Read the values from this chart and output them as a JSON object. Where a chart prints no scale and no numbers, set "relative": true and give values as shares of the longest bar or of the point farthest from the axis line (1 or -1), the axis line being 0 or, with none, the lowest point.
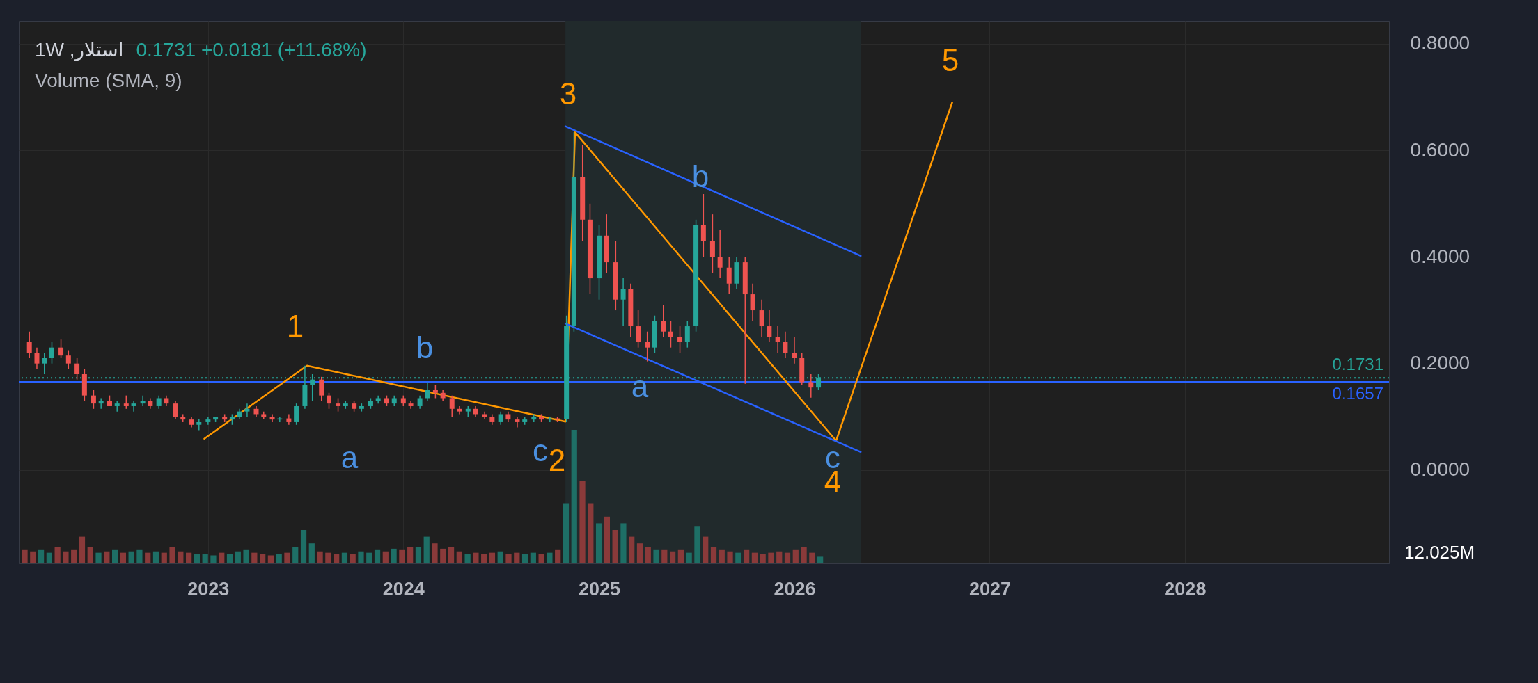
{
  "chart_data": [
    {
      "type": "candlestick",
      "title": "استلار, 1W",
      "subtitle": "Volume (SMA, 9)",
      "annotations": [
        "0.1731 +0.0181 (+11.68%)",
        "a",
        "b",
        "c",
        "a",
        "b",
        "c",
        "1",
        "2",
        "3",
        "4",
        "5"
      ],
      "x": [
        "2022-02-01",
        "2022-02-15",
        "2022-03-01",
        "2022-03-15",
        "2022-04-01",
        "2022-04-15",
        "2022-05-01",
        "2022-05-15",
        "2022-06-01",
        "2022-06-15",
        "2022-07-01",
        "2022-07-15",
        "2022-08-01",
        "2022-08-15",
        "2022-09-01",
        "2022-09-15",
        "2022-10-01",
        "2022-10-15",
        "2022-11-01",
        "2022-11-15",
        "2022-12-01",
        "2022-12-15",
        "2023-01-01",
        "2023-01-15",
        "2023-02-01",
        "2023-02-15",
        "2023-03-01",
        "2023-03-15",
        "2023-04-01",
        "2023-04-15",
        "2023-05-01",
        "2023-05-15",
        "2023-06-01",
        "2023-06-15",
        "2023-07-01",
        "2023-07-15",
        "2023-08-01",
        "2023-08-15",
        "2023-09-01",
        "2023-09-15",
        "2023-10-01",
        "2023-10-15",
        "2023-11-01",
        "2023-11-15",
        "2023-12-01",
        "2023-12-15",
        "2024-01-01",
        "2024-01-15",
        "2024-02-01",
        "2024-02-15",
        "2024-03-01",
        "2024-03-15",
        "2024-04-01",
        "2024-04-15",
        "2024-05-01",
        "2024-05-15",
        "2024-06-01",
        "2024-06-15",
        "2024-07-01",
        "2024-07-15",
        "2024-08-01",
        "2024-08-15",
        "2024-09-01",
        "2024-09-15",
        "2024-10-01",
        "2024-10-15",
        "2024-11-01",
        "2024-11-15",
        "2024-12-01",
        "2024-12-15",
        "2025-01-01",
        "2025-01-15",
        "2025-02-01",
        "2025-02-15",
        "2025-03-01",
        "2025-03-15",
        "2025-04-01",
        "2025-04-15",
        "2025-05-01",
        "2025-05-15",
        "2025-06-01",
        "2025-06-15",
        "2025-07-01",
        "2025-07-15",
        "2025-08-01",
        "2025-08-15",
        "2025-09-01",
        "2025-09-15",
        "2025-10-01",
        "2025-10-15",
        "2025-11-01",
        "2025-11-15",
        "2025-12-01",
        "2025-12-15",
        "2026-01-01",
        "2026-01-15",
        "2026-02-01",
        "2026-02-15"
      ],
      "ohlc": [
        [
          0.24,
          0.26,
          0.21,
          0.22
        ],
        [
          0.22,
          0.23,
          0.19,
          0.2
        ],
        [
          0.2,
          0.22,
          0.18,
          0.21
        ],
        [
          0.21,
          0.24,
          0.2,
          0.23
        ],
        [
          0.23,
          0.245,
          0.21,
          0.215
        ],
        [
          0.215,
          0.225,
          0.19,
          0.2
        ],
        [
          0.2,
          0.21,
          0.17,
          0.18
        ],
        [
          0.18,
          0.19,
          0.13,
          0.14
        ],
        [
          0.14,
          0.15,
          0.115,
          0.125
        ],
        [
          0.125,
          0.135,
          0.115,
          0.13
        ],
        [
          0.13,
          0.14,
          0.12,
          0.12
        ],
        [
          0.12,
          0.13,
          0.11,
          0.125
        ],
        [
          0.125,
          0.14,
          0.115,
          0.12
        ],
        [
          0.12,
          0.13,
          0.11,
          0.125
        ],
        [
          0.125,
          0.14,
          0.12,
          0.13
        ],
        [
          0.13,
          0.135,
          0.115,
          0.12
        ],
        [
          0.12,
          0.14,
          0.115,
          0.135
        ],
        [
          0.135,
          0.14,
          0.12,
          0.125
        ],
        [
          0.125,
          0.13,
          0.095,
          0.1
        ],
        [
          0.1,
          0.105,
          0.09,
          0.095
        ],
        [
          0.095,
          0.1,
          0.08,
          0.085
        ],
        [
          0.085,
          0.095,
          0.075,
          0.09
        ],
        [
          0.09,
          0.1,
          0.085,
          0.095
        ],
        [
          0.095,
          0.1,
          0.09,
          0.1
        ],
        [
          0.1,
          0.105,
          0.09,
          0.095
        ],
        [
          0.095,
          0.105,
          0.085,
          0.1
        ],
        [
          0.1,
          0.115,
          0.095,
          0.11
        ],
        [
          0.11,
          0.125,
          0.1,
          0.115
        ],
        [
          0.115,
          0.12,
          0.1,
          0.105
        ],
        [
          0.105,
          0.11,
          0.095,
          0.1
        ],
        [
          0.1,
          0.105,
          0.09,
          0.095
        ],
        [
          0.095,
          0.1,
          0.09,
          0.097
        ],
        [
          0.097,
          0.105,
          0.085,
          0.09
        ],
        [
          0.09,
          0.125,
          0.085,
          0.12
        ],
        [
          0.12,
          0.196,
          0.115,
          0.16
        ],
        [
          0.16,
          0.18,
          0.13,
          0.17
        ],
        [
          0.17,
          0.175,
          0.13,
          0.14
        ],
        [
          0.14,
          0.145,
          0.115,
          0.125
        ],
        [
          0.125,
          0.135,
          0.11,
          0.12
        ],
        [
          0.12,
          0.13,
          0.115,
          0.125
        ],
        [
          0.125,
          0.13,
          0.11,
          0.115
        ],
        [
          0.115,
          0.125,
          0.11,
          0.12
        ],
        [
          0.12,
          0.135,
          0.115,
          0.13
        ],
        [
          0.13,
          0.14,
          0.125,
          0.135
        ],
        [
          0.135,
          0.14,
          0.12,
          0.125
        ],
        [
          0.125,
          0.14,
          0.12,
          0.135
        ],
        [
          0.135,
          0.14,
          0.12,
          0.125
        ],
        [
          0.125,
          0.13,
          0.115,
          0.12
        ],
        [
          0.12,
          0.14,
          0.115,
          0.135
        ],
        [
          0.135,
          0.165,
          0.13,
          0.15
        ],
        [
          0.15,
          0.16,
          0.135,
          0.145
        ],
        [
          0.145,
          0.15,
          0.13,
          0.135
        ],
        [
          0.135,
          0.14,
          0.1,
          0.115
        ],
        [
          0.115,
          0.12,
          0.105,
          0.11
        ],
        [
          0.11,
          0.12,
          0.1,
          0.115
        ],
        [
          0.115,
          0.12,
          0.1,
          0.105
        ],
        [
          0.105,
          0.11,
          0.095,
          0.1
        ],
        [
          0.1,
          0.105,
          0.085,
          0.09
        ],
        [
          0.09,
          0.11,
          0.085,
          0.105
        ],
        [
          0.105,
          0.11,
          0.09,
          0.095
        ],
        [
          0.095,
          0.1,
          0.08,
          0.09
        ],
        [
          0.09,
          0.1,
          0.085,
          0.095
        ],
        [
          0.095,
          0.105,
          0.09,
          0.1
        ],
        [
          0.1,
          0.105,
          0.09,
          0.095
        ],
        [
          0.095,
          0.1,
          0.09,
          0.097
        ],
        [
          0.097,
          0.1,
          0.09,
          0.095
        ],
        [
          0.095,
          0.29,
          0.09,
          0.27
        ],
        [
          0.27,
          0.634,
          0.26,
          0.55
        ],
        [
          0.55,
          0.61,
          0.43,
          0.47
        ],
        [
          0.47,
          0.5,
          0.33,
          0.36
        ],
        [
          0.36,
          0.46,
          0.32,
          0.44
        ],
        [
          0.44,
          0.48,
          0.37,
          0.39
        ],
        [
          0.39,
          0.43,
          0.3,
          0.32
        ],
        [
          0.32,
          0.36,
          0.27,
          0.34
        ],
        [
          0.34,
          0.35,
          0.25,
          0.27
        ],
        [
          0.27,
          0.3,
          0.23,
          0.24
        ],
        [
          0.24,
          0.26,
          0.204,
          0.23
        ],
        [
          0.23,
          0.29,
          0.22,
          0.28
        ],
        [
          0.28,
          0.31,
          0.25,
          0.26
        ],
        [
          0.26,
          0.28,
          0.23,
          0.25
        ],
        [
          0.25,
          0.27,
          0.22,
          0.24
        ],
        [
          0.24,
          0.28,
          0.23,
          0.27
        ],
        [
          0.27,
          0.47,
          0.26,
          0.46
        ],
        [
          0.46,
          0.518,
          0.4,
          0.43
        ],
        [
          0.43,
          0.48,
          0.37,
          0.4
        ],
        [
          0.4,
          0.45,
          0.36,
          0.38
        ],
        [
          0.38,
          0.4,
          0.33,
          0.35
        ],
        [
          0.35,
          0.4,
          0.34,
          0.39
        ],
        [
          0.39,
          0.4,
          0.162,
          0.33
        ],
        [
          0.33,
          0.35,
          0.28,
          0.3
        ],
        [
          0.3,
          0.32,
          0.25,
          0.27
        ],
        [
          0.27,
          0.3,
          0.24,
          0.25
        ],
        [
          0.25,
          0.27,
          0.22,
          0.24
        ],
        [
          0.24,
          0.26,
          0.21,
          0.22
        ],
        [
          0.22,
          0.25,
          0.2,
          0.21
        ],
        [
          0.21,
          0.22,
          0.16,
          0.165
        ],
        [
          0.165,
          0.18,
          0.136,
          0.155
        ],
        [
          0.155,
          0.18,
          0.15,
          0.1731
        ]
      ],
      "colors": [
        "#ef5350",
        "#ef5350",
        "#26a69a",
        "#26a69a",
        "#ef5350",
        "#ef5350",
        "#ef5350",
        "#ef5350",
        "#ef5350",
        "#26a69a",
        "#ef5350",
        "#26a69a",
        "#ef5350",
        "#26a69a",
        "#26a69a",
        "#ef5350",
        "#26a69a",
        "#ef5350",
        "#ef5350",
        "#ef5350",
        "#ef5350",
        "#26a69a",
        "#26a69a",
        "#26a69a",
        "#ef5350",
        "#26a69a",
        "#26a69a",
        "#26a69a",
        "#ef5350",
        "#ef5350",
        "#ef5350",
        "#26a69a",
        "#ef5350",
        "#26a69a",
        "#26a69a",
        "#26a69a",
        "#ef5350",
        "#ef5350",
        "#ef5350",
        "#26a69a",
        "#ef5350",
        "#26a69a",
        "#26a69a",
        "#26a69a",
        "#ef5350",
        "#26a69a",
        "#ef5350",
        "#ef5350",
        "#26a69a",
        "#26a69a",
        "#ef5350",
        "#ef5350",
        "#ef5350",
        "#ef5350",
        "#26a69a",
        "#ef5350",
        "#ef5350",
        "#ef5350",
        "#26a69a",
        "#ef5350",
        "#ef5350",
        "#26a69a",
        "#26a69a",
        "#ef5350",
        "#26a69a",
        "#ef5350",
        "#26a69a",
        "#26a69a",
        "#ef5350",
        "#ef5350",
        "#26a69a",
        "#ef5350",
        "#ef5350",
        "#26a69a",
        "#ef5350",
        "#ef5350",
        "#ef5350",
        "#26a69a",
        "#ef5350",
        "#ef5350",
        "#ef5350",
        "#26a69a",
        "#26a69a",
        "#ef5350",
        "#ef5350",
        "#ef5350",
        "#ef5350",
        "#26a69a",
        "#ef5350",
        "#ef5350",
        "#ef5350",
        "#ef5350",
        "#ef5350",
        "#ef5350",
        "#ef5350",
        "#ef5350",
        "#ef5350",
        "#26a69a"
      ],
      "series": [
        {
          "type": "line",
          "color": "#ff9800",
          "x": [
            "2022-12-25",
            "2023-07-05",
            "2024-10-30",
            "2024-11-17",
            "2026-03-20",
            "2026-10-23"
          ],
          "values": [
            0.059,
            0.196,
            0.091,
            0.634,
            0.055,
            0.69
          ]
        },
        {
          "type": "line",
          "color": "#2962ff",
          "x": [
            "2024-10-30",
            "2026-05-05"
          ],
          "values": [
            0.645,
            0.402
          ]
        },
        {
          "type": "line",
          "color": "#2962ff",
          "x": [
            "2024-10-30",
            "2026-05-05"
          ],
          "values": [
            0.275,
            0.034
          ]
        }
      ],
      "ref_lines": [
        {
          "axis": "y",
          "value": 0.1731,
          "label": "0.1731",
          "color": "#26a69a",
          "line_style": "dotted"
        },
        {
          "axis": "y",
          "value": 0.1657,
          "label": "0.1657",
          "color": "#2962ff"
        }
      ],
      "bands": [
        {
          "axis": "x",
          "from": "2024-10-30",
          "to": "2026-05-05",
          "color": "#212a2c"
        }
      ],
      "xlim": [
        "2022-01-20",
        "2029-01-10"
      ],
      "xticks": [
        "2023",
        "2024",
        "2025",
        "2026",
        "2027",
        "2028"
      ],
      "ylim": [
        -0.175,
        0.843
      ],
      "yticks": [
        {
          "value": 0,
          "label": "0.0000"
        },
        {
          "value": 0.2,
          "label": "0.2000"
        },
        {
          "value": 0.4,
          "label": "0.4000"
        },
        {
          "value": 0.6,
          "label": "0.6000"
        },
        {
          "value": 0.8,
          "label": "0.8000"
        }
      ],
      "grid": true
    },
    {
      "type": "bar",
      "relative": true,
      "annotations": [
        "12.025M"
      ],
      "categories": [
        null,
        null,
        null,
        null,
        null,
        null,
        null,
        null,
        null,
        null,
        null,
        null,
        null,
        null,
        null,
        null,
        null,
        null,
        null,
        null,
        null,
        null,
        null,
        null,
        null,
        null,
        null,
        null,
        null,
        null,
        null,
        null,
        null,
        null,
        null,
        null,
        null,
        null,
        null,
        null,
        null,
        null,
        null,
        null,
        null,
        null,
        null,
        null,
        null,
        null,
        null,
        null,
        null,
        null,
        null,
        null,
        null,
        null,
        null,
        null,
        null,
        null,
        null,
        null,
        null,
        null,
        null,
        null,
        null,
        null,
        null,
        null,
        null,
        null,
        null,
        null,
        null,
        null,
        null,
        null,
        null,
        null,
        null,
        null,
        null,
        null,
        null,
        null,
        null,
        null,
        null,
        null,
        null,
        null,
        null,
        null,
        null,
        null
      ],
      "values": [
        0.1,
        0.09,
        0.1,
        0.08,
        0.12,
        0.09,
        0.1,
        0.2,
        0.12,
        0.08,
        0.09,
        0.1,
        0.08,
        0.09,
        0.1,
        0.08,
        0.09,
        0.08,
        0.12,
        0.09,
        0.08,
        0.07,
        0.07,
        0.06,
        0.08,
        0.07,
        0.09,
        0.1,
        0.08,
        0.07,
        0.06,
        0.07,
        0.08,
        0.12,
        0.25,
        0.15,
        0.09,
        0.08,
        0.07,
        0.08,
        0.07,
        0.09,
        0.08,
        0.1,
        0.09,
        0.11,
        0.1,
        0.12,
        0.12,
        0.2,
        0.15,
        0.11,
        0.12,
        0.09,
        0.07,
        0.08,
        0.07,
        0.08,
        0.09,
        0.07,
        0.08,
        0.07,
        0.08,
        0.07,
        0.08,
        0.1,
        0.45,
        1,
        0.62,
        0.45,
        0.3,
        0.35,
        0.25,
        0.3,
        0.2,
        0.15,
        0.12,
        0.1,
        0.1,
        0.09,
        0.1,
        0.08,
        0.28,
        0.2,
        0.12,
        0.1,
        0.09,
        0.08,
        0.1,
        0.08,
        0.07,
        0.08,
        0.09,
        0.08,
        0.1,
        0.12,
        0.08,
        0.05
      ],
      "colors": [
        "#8a3a3a",
        "#8a3a3a",
        "#1e6f66",
        "#1e6f66",
        "#8a3a3a",
        "#8a3a3a",
        "#8a3a3a",
        "#8a3a3a",
        "#8a3a3a",
        "#1e6f66",
        "#8a3a3a",
        "#1e6f66",
        "#8a3a3a",
        "#1e6f66",
        "#1e6f66",
        "#8a3a3a",
        "#1e6f66",
        "#8a3a3a",
        "#8a3a3a",
        "#8a3a3a",
        "#8a3a3a",
        "#1e6f66",
        "#1e6f66",
        "#1e6f66",
        "#8a3a3a",
        "#1e6f66",
        "#1e6f66",
        "#1e6f66",
        "#8a3a3a",
        "#8a3a3a",
        "#8a3a3a",
        "#1e6f66",
        "#8a3a3a",
        "#1e6f66",
        "#1e6f66",
        "#1e6f66",
        "#8a3a3a",
        "#8a3a3a",
        "#8a3a3a",
        "#1e6f66",
        "#8a3a3a",
        "#1e6f66",
        "#1e6f66",
        "#1e6f66",
        "#8a3a3a",
        "#1e6f66",
        "#8a3a3a",
        "#8a3a3a",
        "#1e6f66",
        "#1e6f66",
        "#8a3a3a",
        "#8a3a3a",
        "#8a3a3a",
        "#8a3a3a",
        "#1e6f66",
        "#8a3a3a",
        "#8a3a3a",
        "#8a3a3a",
        "#1e6f66",
        "#8a3a3a",
        "#8a3a3a",
        "#1e6f66",
        "#1e6f66",
        "#8a3a3a",
        "#1e6f66",
        "#8a3a3a",
        "#1e6f66",
        "#1e6f66",
        "#8a3a3a",
        "#8a3a3a",
        "#1e6f66",
        "#8a3a3a",
        "#8a3a3a",
        "#1e6f66",
        "#8a3a3a",
        "#8a3a3a",
        "#8a3a3a",
        "#1e6f66",
        "#8a3a3a",
        "#8a3a3a",
        "#8a3a3a",
        "#1e6f66",
        "#1e6f66",
        "#8a3a3a",
        "#8a3a3a",
        "#8a3a3a",
        "#8a3a3a",
        "#1e6f66",
        "#8a3a3a",
        "#8a3a3a",
        "#8a3a3a",
        "#8a3a3a",
        "#8a3a3a",
        "#8a3a3a",
        "#8a3a3a",
        "#8a3a3a",
        "#8a3a3a",
        "#1e6f66"
      ]
    }
  ]
}
